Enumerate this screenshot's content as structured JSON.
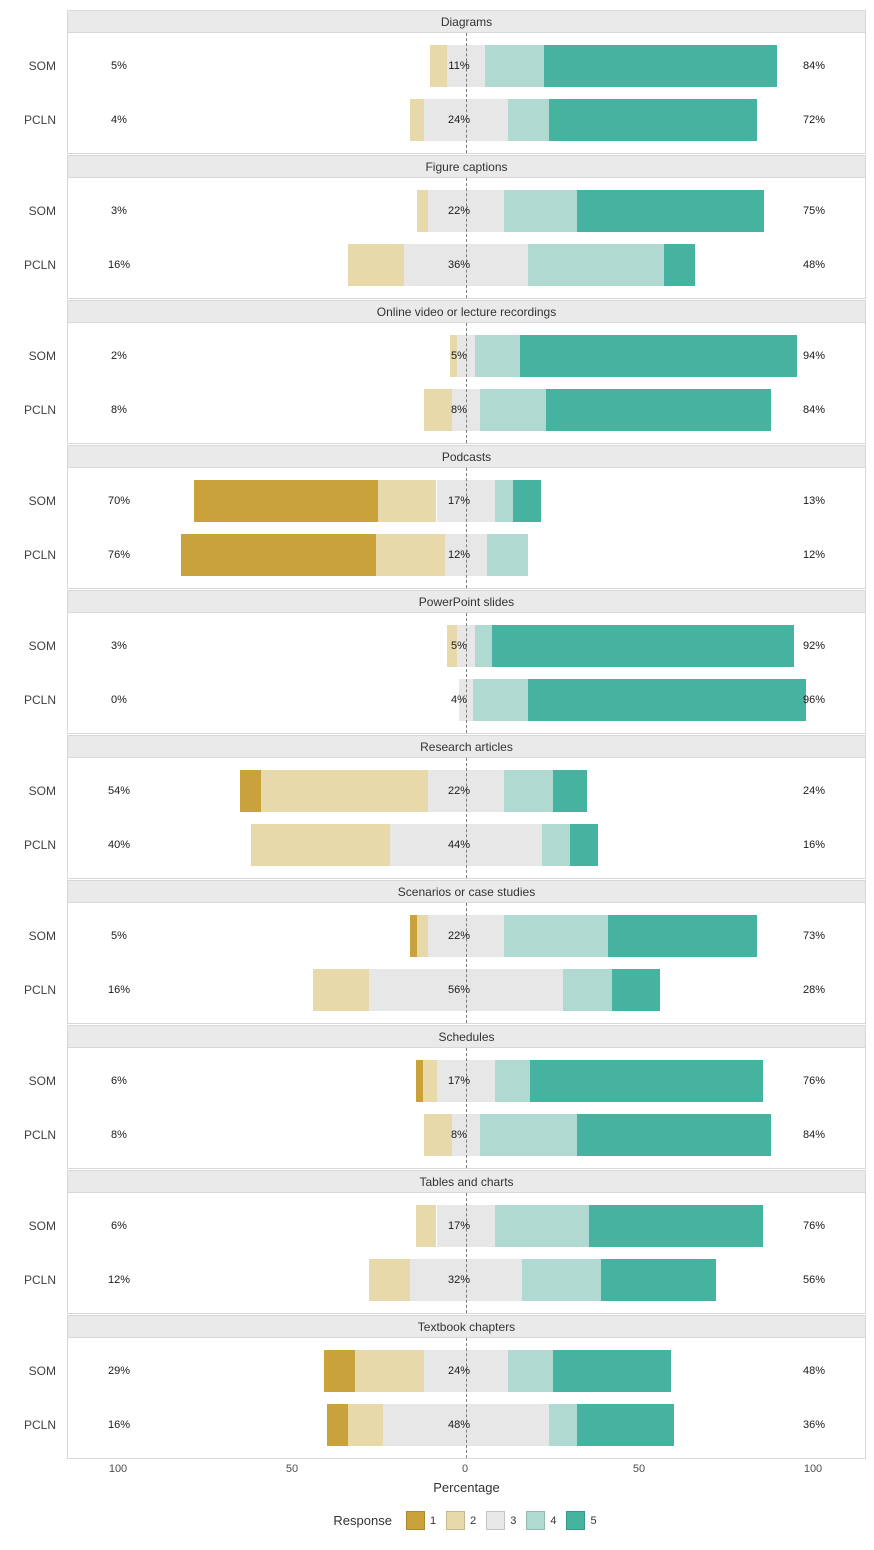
{
  "chart_data": {
    "type": "bar",
    "subtype": "diverging-stacked-likert",
    "title": "",
    "xlabel": "Percentage",
    "x_ticks": [
      -100,
      -50,
      0,
      50,
      100
    ],
    "x_tick_labels": [
      "100",
      "50",
      "0",
      "50",
      "100"
    ],
    "axis_range": [
      -100,
      100
    ],
    "grid": false,
    "legend": {
      "title": "Response",
      "entries": [
        "1",
        "2",
        "3",
        "4",
        "5"
      ],
      "position": "bottom"
    },
    "colors": {
      "1": "#c9a23c",
      "2": "#e8d9ab",
      "3": "#e7e7e7",
      "4": "#afd9d1",
      "5": "#46b2a0"
    },
    "groups": [
      "SOM",
      "PCLN"
    ],
    "panels": [
      {
        "title": "Diagrams",
        "rows": [
          {
            "group": "SOM",
            "low_label": "5%",
            "mid_label": "11%",
            "high_label": "84%",
            "values": [
              0,
              5,
              11,
              17,
              67
            ]
          },
          {
            "group": "PCLN",
            "low_label": "4%",
            "mid_label": "24%",
            "high_label": "72%",
            "values": [
              0,
              4,
              24,
              12,
              60
            ]
          }
        ]
      },
      {
        "title": "Figure captions",
        "rows": [
          {
            "group": "SOM",
            "low_label": "3%",
            "mid_label": "22%",
            "high_label": "75%",
            "values": [
              0,
              3,
              22,
              21,
              54
            ]
          },
          {
            "group": "PCLN",
            "low_label": "16%",
            "mid_label": "36%",
            "high_label": "48%",
            "values": [
              0,
              16,
              36,
              39,
              9
            ]
          }
        ]
      },
      {
        "title": "Online video or lecture recordings",
        "rows": [
          {
            "group": "SOM",
            "low_label": "2%",
            "mid_label": "5%",
            "high_label": "94%",
            "values": [
              0,
              2,
              5,
              13,
              80
            ]
          },
          {
            "group": "PCLN",
            "low_label": "8%",
            "mid_label": "8%",
            "high_label": "84%",
            "values": [
              0,
              8,
              8,
              19,
              65
            ]
          }
        ]
      },
      {
        "title": "Podcasts",
        "rows": [
          {
            "group": "SOM",
            "low_label": "70%",
            "mid_label": "17%",
            "high_label": "13%",
            "values": [
              53,
              17,
              17,
              5,
              8
            ]
          },
          {
            "group": "PCLN",
            "low_label": "76%",
            "mid_label": "12%",
            "high_label": "12%",
            "values": [
              56,
              20,
              12,
              12,
              0
            ]
          }
        ]
      },
      {
        "title": "PowerPoint slides",
        "rows": [
          {
            "group": "SOM",
            "low_label": "3%",
            "mid_label": "5%",
            "high_label": "92%",
            "values": [
              0,
              3,
              5,
              5,
              87
            ]
          },
          {
            "group": "PCLN",
            "low_label": "0%",
            "mid_label": "4%",
            "high_label": "96%",
            "values": [
              0,
              0,
              4,
              16,
              80
            ]
          }
        ]
      },
      {
        "title": "Research articles",
        "rows": [
          {
            "group": "SOM",
            "low_label": "54%",
            "mid_label": "22%",
            "high_label": "24%",
            "values": [
              6,
              48,
              22,
              14,
              10
            ]
          },
          {
            "group": "PCLN",
            "low_label": "40%",
            "mid_label": "44%",
            "high_label": "16%",
            "values": [
              0,
              40,
              44,
              8,
              8
            ]
          }
        ]
      },
      {
        "title": "Scenarios or case studies",
        "rows": [
          {
            "group": "SOM",
            "low_label": "5%",
            "mid_label": "22%",
            "high_label": "73%",
            "values": [
              2,
              3,
              22,
              30,
              43
            ]
          },
          {
            "group": "PCLN",
            "low_label": "16%",
            "mid_label": "56%",
            "high_label": "28%",
            "values": [
              0,
              16,
              56,
              14,
              14
            ]
          }
        ]
      },
      {
        "title": "Schedules",
        "rows": [
          {
            "group": "SOM",
            "low_label": "6%",
            "mid_label": "17%",
            "high_label": "76%",
            "values": [
              2,
              4,
              17,
              10,
              67
            ]
          },
          {
            "group": "PCLN",
            "low_label": "8%",
            "mid_label": "8%",
            "high_label": "84%",
            "values": [
              0,
              8,
              8,
              28,
              56
            ]
          }
        ]
      },
      {
        "title": "Tables and charts",
        "rows": [
          {
            "group": "SOM",
            "low_label": "6%",
            "mid_label": "17%",
            "high_label": "76%",
            "values": [
              0,
              6,
              17,
              27,
              50
            ]
          },
          {
            "group": "PCLN",
            "low_label": "12%",
            "mid_label": "32%",
            "high_label": "56%",
            "values": [
              0,
              12,
              32,
              23,
              33
            ]
          }
        ]
      },
      {
        "title": "Textbook chapters",
        "rows": [
          {
            "group": "SOM",
            "low_label": "29%",
            "mid_label": "24%",
            "high_label": "48%",
            "values": [
              9,
              20,
              24,
              13,
              34
            ]
          },
          {
            "group": "PCLN",
            "low_label": "16%",
            "mid_label": "48%",
            "high_label": "36%",
            "values": [
              6,
              10,
              48,
              8,
              28
            ]
          }
        ]
      }
    ]
  }
}
